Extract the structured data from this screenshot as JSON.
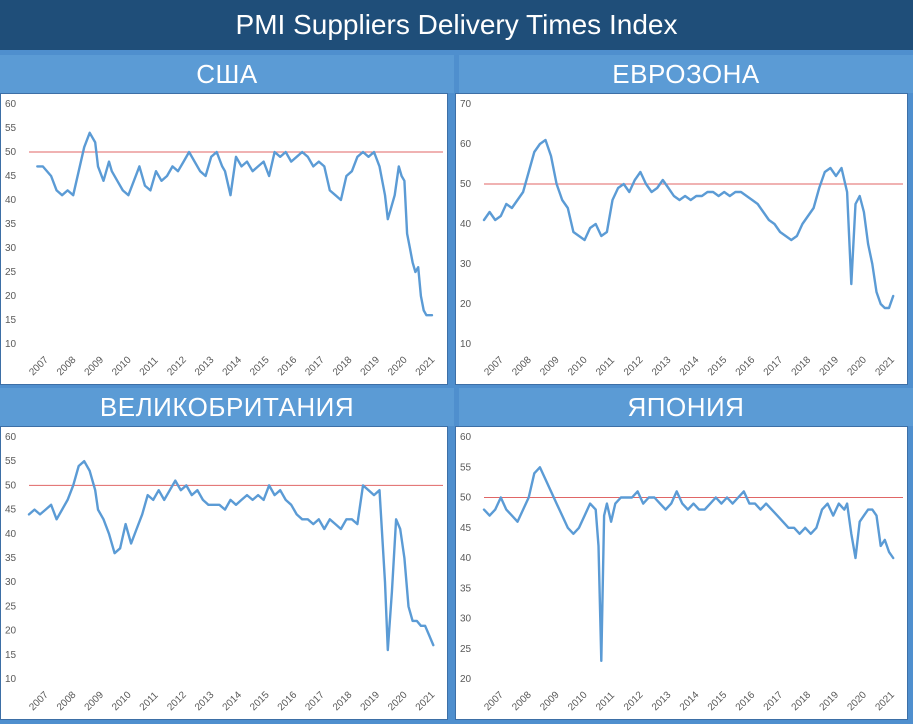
{
  "page_title": "PMI Suppliers Delivery Times Index",
  "colors": {
    "line": "#5b9bd5",
    "threshold": "#e06666",
    "header": "#1f4e79",
    "section": "#5b9bd5"
  },
  "years": [
    "2007",
    "2008",
    "2009",
    "2010",
    "2011",
    "2012",
    "2013",
    "2014",
    "2015",
    "2016",
    "2017",
    "2018",
    "2019",
    "2020",
    "2021"
  ],
  "chart_data": [
    {
      "type": "line",
      "title": "США",
      "ylim": [
        10,
        60
      ],
      "yticks": [
        10,
        15,
        20,
        25,
        30,
        35,
        40,
        45,
        50,
        55,
        60
      ],
      "threshold": 50,
      "x": [
        2007.3,
        2007.5,
        2007.8,
        2008.0,
        2008.2,
        2008.4,
        2008.6,
        2008.8,
        2009.0,
        2009.2,
        2009.4,
        2009.5,
        2009.7,
        2009.9,
        2010.0,
        2010.2,
        2010.4,
        2010.6,
        2010.8,
        2011.0,
        2011.2,
        2011.4,
        2011.6,
        2011.8,
        2012.0,
        2012.2,
        2012.4,
        2012.6,
        2012.8,
        2013.0,
        2013.2,
        2013.4,
        2013.6,
        2013.8,
        2014.0,
        2014.1,
        2014.3,
        2014.5,
        2014.7,
        2014.9,
        2015.1,
        2015.3,
        2015.5,
        2015.7,
        2015.9,
        2016.1,
        2016.3,
        2016.5,
        2016.7,
        2016.9,
        2017.1,
        2017.3,
        2017.5,
        2017.7,
        2017.9,
        2018.1,
        2018.3,
        2018.5,
        2018.7,
        2018.9,
        2019.1,
        2019.3,
        2019.5,
        2019.7,
        2019.9,
        2020.0,
        2020.1,
        2020.25,
        2020.4,
        2020.5,
        2020.6,
        2020.7,
        2020.8,
        2020.9,
        2021.0,
        2021.1,
        2021.2,
        2021.3,
        2021.4,
        2021.5,
        2021.6
      ],
      "y": [
        47,
        47,
        45,
        42,
        41,
        42,
        41,
        46,
        51,
        54,
        52,
        47,
        44,
        48,
        46,
        44,
        42,
        41,
        44,
        47,
        43,
        42,
        46,
        44,
        45,
        47,
        46,
        48,
        50,
        48,
        46,
        45,
        49,
        50,
        47,
        46,
        41,
        49,
        47,
        48,
        46,
        47,
        48,
        45,
        50,
        49,
        50,
        48,
        49,
        50,
        49,
        47,
        48,
        47,
        42,
        41,
        40,
        45,
        46,
        49,
        50,
        49,
        50,
        47,
        41,
        36,
        38,
        41,
        47,
        45,
        44,
        33,
        30,
        27,
        25,
        26,
        20,
        17,
        16,
        16,
        16
      ],
      "xlim": [
        2007,
        2022
      ]
    },
    {
      "type": "line",
      "title": "ЕВРОЗОНА",
      "ylim": [
        10,
        70
      ],
      "yticks": [
        10,
        20,
        30,
        40,
        50,
        60,
        70
      ],
      "threshold": 50,
      "x": [
        2007.0,
        2007.2,
        2007.4,
        2007.6,
        2007.8,
        2008.0,
        2008.2,
        2008.4,
        2008.6,
        2008.8,
        2009.0,
        2009.2,
        2009.4,
        2009.6,
        2009.8,
        2010.0,
        2010.2,
        2010.4,
        2010.6,
        2010.8,
        2011.0,
        2011.2,
        2011.4,
        2011.6,
        2011.8,
        2012.0,
        2012.2,
        2012.4,
        2012.6,
        2012.8,
        2013.0,
        2013.2,
        2013.4,
        2013.6,
        2013.8,
        2014.0,
        2014.2,
        2014.4,
        2014.6,
        2014.8,
        2015.0,
        2015.2,
        2015.4,
        2015.6,
        2015.8,
        2016.0,
        2016.2,
        2016.4,
        2016.6,
        2016.8,
        2017.0,
        2017.2,
        2017.4,
        2017.6,
        2017.8,
        2018.0,
        2018.2,
        2018.4,
        2018.6,
        2018.8,
        2019.0,
        2019.2,
        2019.4,
        2019.6,
        2019.8,
        2020.0,
        2020.15,
        2020.3,
        2020.45,
        2020.6,
        2020.75,
        2020.9,
        2021.05,
        2021.2,
        2021.35,
        2021.5,
        2021.65
      ],
      "y": [
        41,
        43,
        41,
        42,
        45,
        44,
        46,
        48,
        53,
        58,
        60,
        61,
        57,
        50,
        46,
        44,
        38,
        37,
        36,
        39,
        40,
        37,
        38,
        46,
        49,
        50,
        48,
        51,
        53,
        50,
        48,
        49,
        51,
        49,
        47,
        46,
        47,
        46,
        47,
        47,
        48,
        48,
        47,
        48,
        47,
        48,
        48,
        47,
        46,
        45,
        43,
        41,
        40,
        38,
        37,
        36,
        37,
        40,
        42,
        44,
        49,
        53,
        54,
        52,
        54,
        48,
        25,
        45,
        47,
        43,
        35,
        30,
        23,
        20,
        19,
        19,
        22
      ],
      "xlim": [
        2007,
        2022
      ]
    },
    {
      "type": "line",
      "title": "ВЕЛИКОБРИТАНИЯ",
      "ylim": [
        10,
        60
      ],
      "yticks": [
        10,
        15,
        20,
        25,
        30,
        35,
        40,
        45,
        50,
        55,
        60
      ],
      "threshold": 50,
      "x": [
        2007.0,
        2007.2,
        2007.4,
        2007.6,
        2007.8,
        2008.0,
        2008.2,
        2008.4,
        2008.6,
        2008.8,
        2009.0,
        2009.2,
        2009.4,
        2009.5,
        2009.7,
        2009.9,
        2010.1,
        2010.3,
        2010.5,
        2010.7,
        2010.9,
        2011.1,
        2011.3,
        2011.5,
        2011.7,
        2011.9,
        2012.1,
        2012.3,
        2012.5,
        2012.7,
        2012.9,
        2013.1,
        2013.3,
        2013.5,
        2013.7,
        2013.9,
        2014.1,
        2014.3,
        2014.5,
        2014.7,
        2014.9,
        2015.1,
        2015.3,
        2015.5,
        2015.7,
        2015.9,
        2016.1,
        2016.3,
        2016.5,
        2016.7,
        2016.9,
        2017.1,
        2017.3,
        2017.5,
        2017.7,
        2017.9,
        2018.1,
        2018.3,
        2018.5,
        2018.7,
        2018.9,
        2019.1,
        2019.3,
        2019.5,
        2019.7,
        2019.9,
        2020.0,
        2020.15,
        2020.3,
        2020.45,
        2020.6,
        2020.75,
        2020.9,
        2021.05,
        2021.2,
        2021.35,
        2021.5,
        2021.65
      ],
      "y": [
        44,
        45,
        44,
        45,
        46,
        43,
        45,
        47,
        50,
        54,
        55,
        53,
        49,
        45,
        43,
        40,
        36,
        37,
        42,
        38,
        41,
        44,
        48,
        47,
        49,
        47,
        49,
        51,
        49,
        50,
        48,
        49,
        47,
        46,
        46,
        46,
        45,
        47,
        46,
        47,
        48,
        47,
        48,
        47,
        50,
        48,
        49,
        47,
        46,
        44,
        43,
        43,
        42,
        43,
        41,
        43,
        42,
        41,
        43,
        43,
        42,
        50,
        49,
        48,
        49,
        30,
        16,
        28,
        43,
        41,
        35,
        25,
        22,
        22,
        21,
        21,
        19,
        17
      ],
      "xlim": [
        2007,
        2022
      ]
    },
    {
      "type": "line",
      "title": "ЯПОНИЯ",
      "ylim": [
        20,
        60
      ],
      "yticks": [
        20,
        25,
        30,
        35,
        40,
        45,
        50,
        55,
        60
      ],
      "threshold": 50,
      "x": [
        2007.0,
        2007.2,
        2007.4,
        2007.6,
        2007.8,
        2008.0,
        2008.2,
        2008.4,
        2008.6,
        2008.8,
        2009.0,
        2009.2,
        2009.4,
        2009.6,
        2009.8,
        2010.0,
        2010.2,
        2010.4,
        2010.6,
        2010.8,
        2011.0,
        2011.1,
        2011.2,
        2011.3,
        2011.4,
        2011.55,
        2011.7,
        2011.9,
        2012.1,
        2012.3,
        2012.5,
        2012.7,
        2012.9,
        2013.1,
        2013.3,
        2013.5,
        2013.7,
        2013.9,
        2014.1,
        2014.3,
        2014.5,
        2014.7,
        2014.9,
        2015.1,
        2015.3,
        2015.5,
        2015.7,
        2015.9,
        2016.1,
        2016.3,
        2016.5,
        2016.7,
        2016.9,
        2017.1,
        2017.3,
        2017.5,
        2017.7,
        2017.9,
        2018.1,
        2018.3,
        2018.5,
        2018.7,
        2018.9,
        2019.1,
        2019.3,
        2019.5,
        2019.7,
        2019.9,
        2020.0,
        2020.15,
        2020.3,
        2020.45,
        2020.6,
        2020.75,
        2020.9,
        2021.05,
        2021.2,
        2021.35,
        2021.5,
        2021.65
      ],
      "y": [
        48,
        47,
        48,
        50,
        48,
        47,
        46,
        48,
        50,
        54,
        55,
        53,
        51,
        49,
        47,
        45,
        44,
        45,
        47,
        49,
        48,
        42,
        23,
        47,
        49,
        46,
        49,
        50,
        50,
        50,
        51,
        49,
        50,
        50,
        49,
        48,
        49,
        51,
        49,
        48,
        49,
        48,
        48,
        49,
        50,
        49,
        50,
        49,
        50,
        51,
        49,
        49,
        48,
        49,
        48,
        47,
        46,
        45,
        45,
        44,
        45,
        44,
        45,
        48,
        49,
        47,
        49,
        48,
        49,
        44,
        40,
        46,
        47,
        48,
        48,
        47,
        42,
        43,
        41,
        40
      ],
      "xlim": [
        2007,
        2022
      ]
    }
  ]
}
